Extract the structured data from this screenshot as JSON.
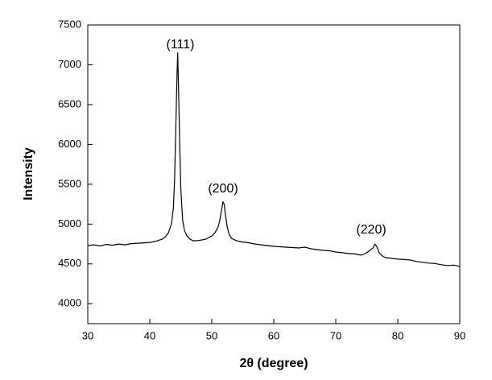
{
  "chart_data": {
    "type": "line",
    "x_label": "2θ (degree)",
    "y_label": "Intensity",
    "xlim": [
      30,
      90
    ],
    "xticks": [
      30,
      40,
      50,
      60,
      70,
      80,
      90
    ],
    "ylim": [
      3750,
      7500
    ],
    "yticks": [
      4000,
      4500,
      5000,
      5500,
      6000,
      6500,
      7000,
      7500
    ],
    "annotations": [
      "(111)",
      "(200)",
      "(220)"
    ],
    "series": [
      {
        "color": "#000000",
        "x": [
          30,
          31,
          32,
          33,
          34,
          35,
          36,
          37,
          38,
          39,
          40,
          41,
          42,
          42.5,
          43,
          43.5,
          43.8,
          44,
          44.2,
          44.4,
          44.5,
          44.6,
          44.8,
          45,
          45.3,
          45.6,
          46,
          46.5,
          47,
          48,
          49,
          50,
          50.5,
          51,
          51.3,
          51.6,
          51.8,
          52,
          52.2,
          52.5,
          52.8,
          53.2,
          54,
          55,
          56,
          57,
          58,
          59,
          60,
          61,
          62,
          63,
          64,
          65,
          66,
          67,
          68,
          69,
          70,
          71,
          72,
          73,
          74,
          74.5,
          75,
          75.5,
          76,
          76.3,
          76.6,
          77,
          77.5,
          78,
          79,
          80,
          81,
          82,
          83,
          84,
          85,
          86,
          87,
          88,
          89,
          90
        ],
        "values": [
          4730,
          4740,
          4725,
          4745,
          4735,
          4750,
          4740,
          4755,
          4760,
          4765,
          4770,
          4785,
          4810,
          4840,
          4890,
          5000,
          5200,
          5550,
          6200,
          6900,
          7150,
          6850,
          6100,
          5450,
          5050,
          4920,
          4850,
          4810,
          4790,
          4795,
          4810,
          4850,
          4890,
          4960,
          5050,
          5180,
          5280,
          5250,
          5120,
          4960,
          4870,
          4820,
          4790,
          4775,
          4765,
          4750,
          4740,
          4730,
          4720,
          4715,
          4710,
          4705,
          4700,
          4710,
          4690,
          4680,
          4670,
          4665,
          4650,
          4640,
          4630,
          4625,
          4610,
          4620,
          4640,
          4670,
          4700,
          4750,
          4720,
          4640,
          4600,
          4580,
          4570,
          4560,
          4555,
          4550,
          4530,
          4520,
          4510,
          4505,
          4490,
          4480,
          4485,
          4470
        ]
      }
    ]
  }
}
